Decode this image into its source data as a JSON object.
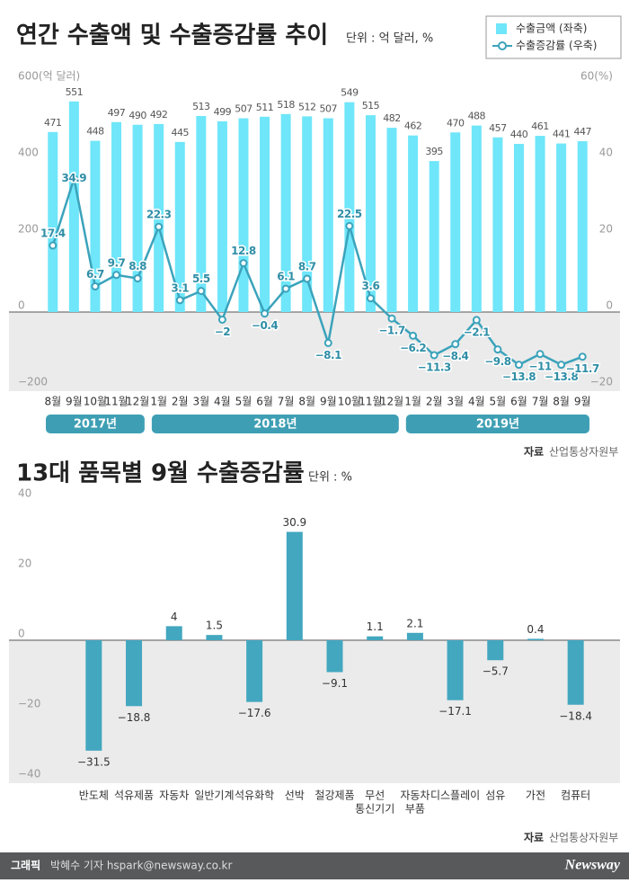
{
  "chart_data": [
    {
      "type": "combo",
      "title": "연간 수출액 및 수출증감률 추이",
      "subtitle": "단위 : 억 달러, %",
      "categories": [
        "8월",
        "9월",
        "10월",
        "11월",
        "12월",
        "1월",
        "2월",
        "3월",
        "4월",
        "5월",
        "6월",
        "7월",
        "8월",
        "9월",
        "10월",
        "11월",
        "12월",
        "1월",
        "2월",
        "3월",
        "4월",
        "5월",
        "6월",
        "7월",
        "8월",
        "9월"
      ],
      "groups": [
        {
          "label": "2017년",
          "start": 0,
          "end": 4
        },
        {
          "label": "2018년",
          "start": 5,
          "end": 16
        },
        {
          "label": "2019년",
          "start": 17,
          "end": 25
        }
      ],
      "series": [
        {
          "name": "수출금액 (좌축)",
          "type": "bar",
          "color": "#6fe6f9",
          "values": [
            471,
            551,
            448,
            497,
            490,
            492,
            445,
            513,
            499,
            507,
            511,
            518,
            512,
            507,
            549,
            515,
            482,
            462,
            395,
            470,
            488,
            457,
            440,
            461,
            441,
            447
          ]
        },
        {
          "name": "수출증감률 (우축)",
          "type": "line",
          "axis": "y2",
          "color": "#3ba3bb",
          "values": [
            17.4,
            34.9,
            6.7,
            9.7,
            8.8,
            22.3,
            3.1,
            5.5,
            -2,
            12.8,
            -0.4,
            6.1,
            8.7,
            -8.1,
            22.5,
            3.6,
            -1.7,
            -6.2,
            -11.3,
            -8.4,
            -2.1,
            -9.8,
            -13.8,
            -11,
            -13.8,
            -11.7
          ],
          "value_labels": [
            "17.4",
            "34.9",
            "6.7",
            "9.7",
            "8.8",
            "22.3",
            "3.1",
            "5.5",
            "−2",
            "12.8",
            "−0.4",
            "6.1",
            "8.7",
            "−8.1",
            "22.5",
            "3.6",
            "−1.7",
            "−6.2",
            "−11.3",
            "−8.4",
            "−2.1",
            "−9.8",
            "−13.8",
            "−11",
            "−13.8",
            "−11.7"
          ]
        }
      ],
      "ylim": [
        -200,
        600
      ],
      "yticks": [
        {
          "value": 600,
          "label": "600(억 달러)"
        },
        400,
        200,
        0,
        {
          "value": -200,
          "label": "−200"
        }
      ],
      "y2lim": [
        -20,
        60
      ],
      "y2ticks": [
        {
          "value": 60,
          "label": "60(%)"
        },
        40,
        20,
        0,
        {
          "value": -20,
          "label": "−20"
        }
      ],
      "grid": false,
      "legend": "top-right",
      "source_label": "자료",
      "source": "산업통상자원부"
    },
    {
      "type": "bar",
      "title": "13대 품목별 9월 수출증감률",
      "subtitle": "단위 : %",
      "categories": [
        "반도체",
        "석유제품",
        "자동차",
        "일반기계",
        "석유화학",
        "선박",
        "철강제품",
        [
          "무선",
          "통신기기"
        ],
        [
          "자동차",
          "부품"
        ],
        "디스플레이",
        "섬유",
        "가전",
        "컴퓨터"
      ],
      "values": [
        -31.5,
        -18.8,
        4,
        1.5,
        -17.6,
        30.9,
        -9.1,
        1.1,
        2.1,
        -17.1,
        -5.7,
        0.4,
        -18.4
      ],
      "value_labels": [
        "−31.5",
        "−18.8",
        "4",
        "1.5",
        "−17.6",
        "30.9",
        "−9.1",
        "1.1",
        "2.1",
        "−17.1",
        "−5.7",
        "0.4",
        "−18.4"
      ],
      "color": "#43a7bf",
      "ylim": [
        -40,
        40
      ],
      "yticks": [
        40,
        20,
        0,
        {
          "value": -20,
          "label": "−20"
        },
        {
          "value": -40,
          "label": "−40"
        }
      ],
      "grid": false,
      "source_label": "자료",
      "source": "산업통상자원부"
    }
  ],
  "footer": {
    "credit_label": "그래픽",
    "credit": "박혜수 기자 hspark@newsway.co.kr",
    "logo": "Newsway"
  }
}
